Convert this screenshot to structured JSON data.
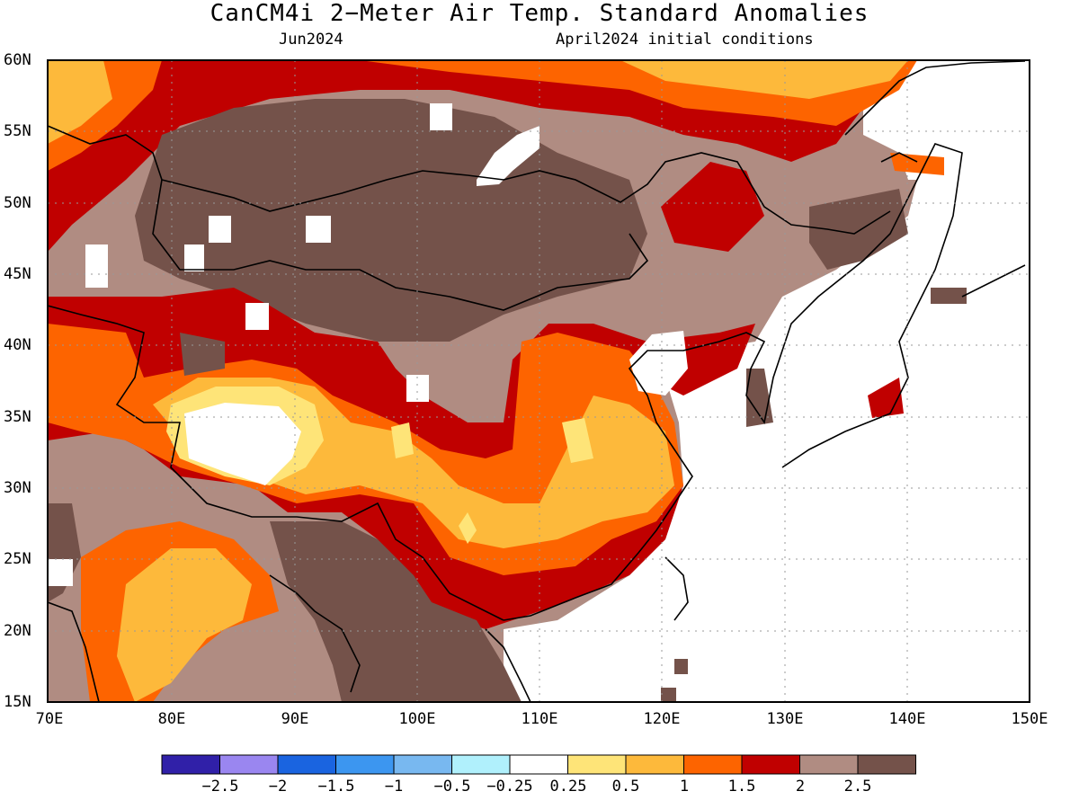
{
  "title": "CanCM4i 2−Meter Air Temp. Standard Anomalies",
  "subtitle_left": "Jun2024",
  "subtitle_right": "April2024 initial conditions",
  "lat_labels": [
    "60N",
    "55N",
    "50N",
    "45N",
    "40N",
    "35N",
    "30N",
    "25N",
    "20N",
    "15N"
  ],
  "lon_labels": [
    "70E",
    "80E",
    "90E",
    "100E",
    "110E",
    "120E",
    "130E",
    "140E",
    "150E"
  ],
  "colorbar": {
    "colors": [
      "#3020a8",
      "#9a86f0",
      "#1a64e0",
      "#3c96f0",
      "#78b8f0",
      "#b0f0fc",
      "#ffffff",
      "#fee478",
      "#fdb93b",
      "#fd6400",
      "#c00000",
      "#b08c82",
      "#74524a"
    ],
    "labels": [
      "−2.5",
      "−2",
      "−1.5",
      "−1",
      "−0.5",
      "−0.25",
      "0.25",
      "0.5",
      "1",
      "1.5",
      "2",
      "2.5"
    ]
  },
  "colors": {
    "land_bg": "#b08c82",
    "dark_brown": "#74524a",
    "red": "#c00000",
    "orange": "#fd6400",
    "light_orange": "#fdb93b",
    "yellow": "#fee478",
    "white": "#ffffff"
  }
}
